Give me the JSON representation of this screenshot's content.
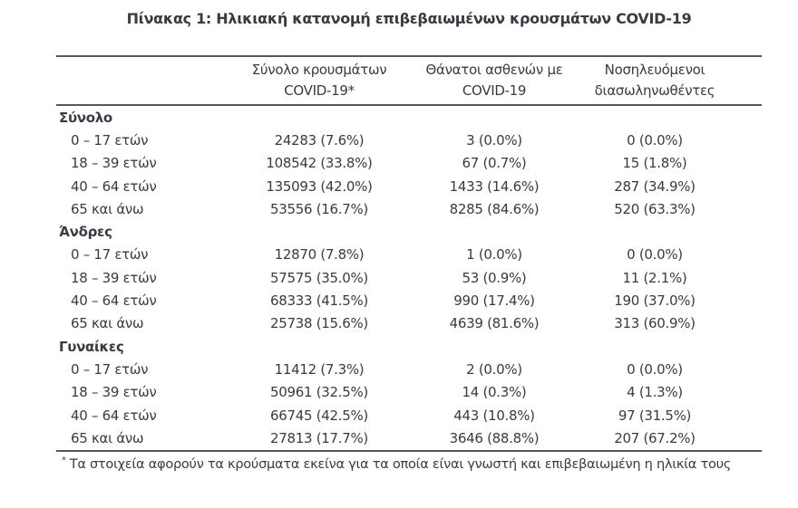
{
  "title": "Πίνακας 1: Ηλικιακή κατανομή επιβεβαιωμένων κρουσμάτων COVID-19",
  "colors": {
    "text": "#3a3a45",
    "rule": "#57575c",
    "background": "#ffffff"
  },
  "table": {
    "columns": [
      {
        "line1": "",
        "line2": ""
      },
      {
        "line1": "Σύνολο κρουσμάτων",
        "line2": "COVID-19*"
      },
      {
        "line1": "Θάνατοι ασθενών με",
        "line2": "COVID-19"
      },
      {
        "line1": "Νοσηλευόμενοι",
        "line2": "διασωληνωθέντες"
      }
    ],
    "sections": [
      {
        "label": "Σύνολο",
        "rows": [
          {
            "age": "0 – 17 ετών",
            "cases": "24283 (7.6%)",
            "deaths": "3 (0.0%)",
            "intubated": "0 (0.0%)"
          },
          {
            "age": "18 – 39 ετών",
            "cases": "108542 (33.8%)",
            "deaths": "67 (0.7%)",
            "intubated": "15 (1.8%)"
          },
          {
            "age": "40 – 64 ετών",
            "cases": "135093 (42.0%)",
            "deaths": "1433 (14.6%)",
            "intubated": "287 (34.9%)"
          },
          {
            "age": "65 και άνω",
            "cases": "53556 (16.7%)",
            "deaths": "8285 (84.6%)",
            "intubated": "520 (63.3%)"
          }
        ]
      },
      {
        "label": "Άνδρες",
        "rows": [
          {
            "age": "0 – 17 ετών",
            "cases": "12870 (7.8%)",
            "deaths": "1 (0.0%)",
            "intubated": "0 (0.0%)"
          },
          {
            "age": "18 – 39 ετών",
            "cases": "57575 (35.0%)",
            "deaths": "53 (0.9%)",
            "intubated": "11 (2.1%)"
          },
          {
            "age": "40 – 64 ετών",
            "cases": "68333 (41.5%)",
            "deaths": "990 (17.4%)",
            "intubated": "190 (37.0%)"
          },
          {
            "age": "65 και άνω",
            "cases": "25738 (15.6%)",
            "deaths": "4639 (81.6%)",
            "intubated": "313 (60.9%)"
          }
        ]
      },
      {
        "label": "Γυναίκες",
        "rows": [
          {
            "age": "0 – 17 ετών",
            "cases": "11412 (7.3%)",
            "deaths": "2 (0.0%)",
            "intubated": "0 (0.0%)"
          },
          {
            "age": "18 – 39 ετών",
            "cases": "50961 (32.5%)",
            "deaths": "14 (0.3%)",
            "intubated": "4 (1.3%)"
          },
          {
            "age": "40 – 64 ετών",
            "cases": "66745 (42.5%)",
            "deaths": "443 (10.8%)",
            "intubated": "97 (31.5%)"
          },
          {
            "age": "65 και άνω",
            "cases": "27813 (17.7%)",
            "deaths": "3646 (88.8%)",
            "intubated": "207 (67.2%)"
          }
        ]
      }
    ]
  },
  "footnote": {
    "marker": "*",
    "text": "Τα στοιχεία αφορούν τα κρούσματα εκείνα για τα οποία είναι γνωστή και επιβεβαιωμένη η ηλικία τους"
  }
}
